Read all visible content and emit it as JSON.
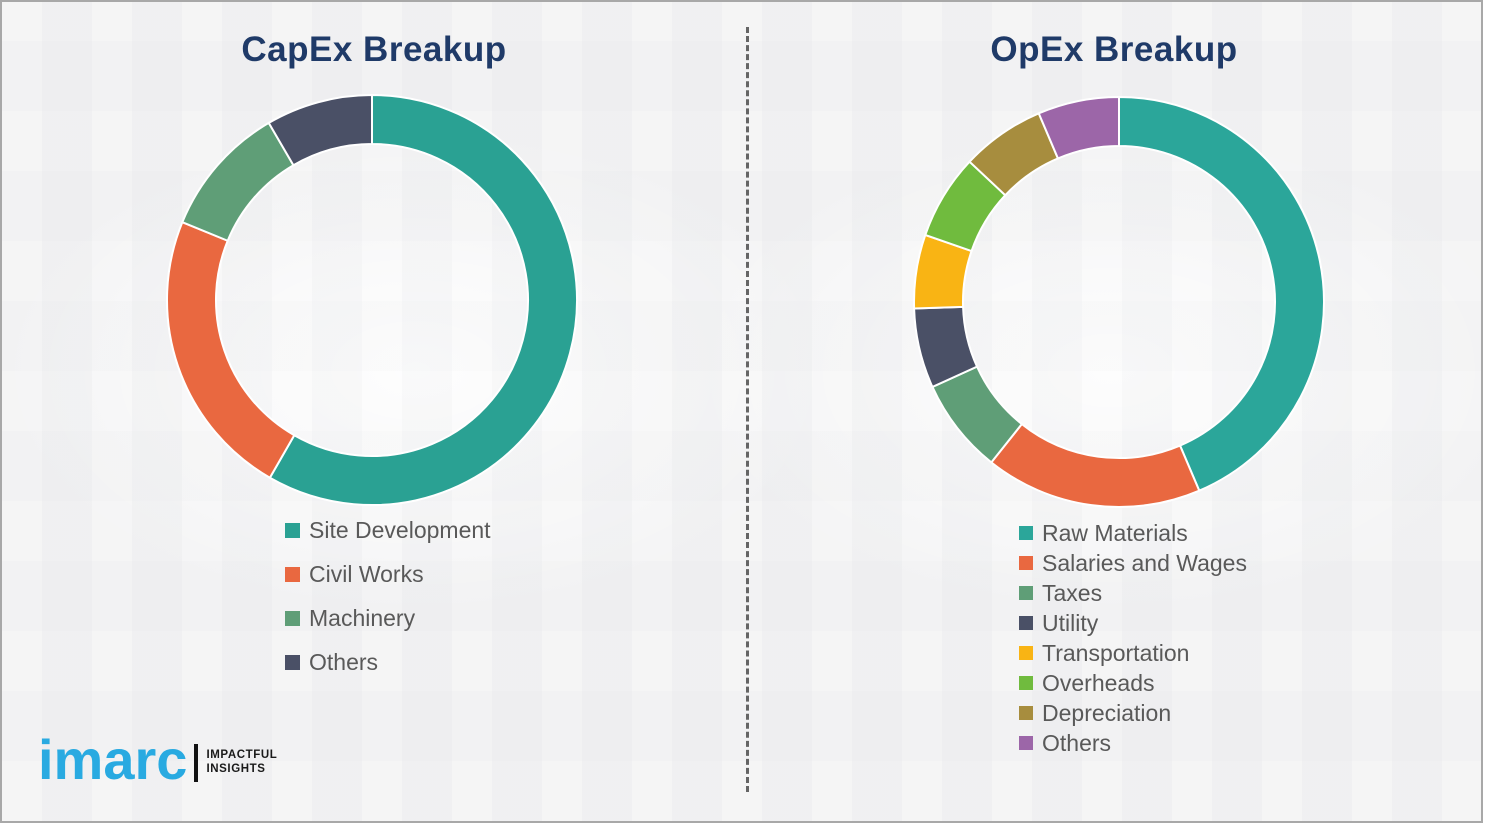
{
  "page": {
    "background_color": "#f1f1f2",
    "frame_border_color": "#a8a8a8",
    "divider_color": "#4d4d4d",
    "title_color": "#1f3a68",
    "legend_text_color": "#595959"
  },
  "chart_data": [
    {
      "type": "pie",
      "subtype": "donut",
      "title": "CapEx Breakup",
      "categories": [
        "Site Development",
        "Civil Works",
        "Machinery",
        "Others"
      ],
      "values": [
        58.3,
        22.9,
        10.4,
        8.4
      ],
      "colors": [
        "#2aa193",
        "#e96840",
        "#5f9e77",
        "#4a5066"
      ],
      "start_angle_deg": 0,
      "direction": "clockwise",
      "legend_position": "below-left",
      "data_labels": false
    },
    {
      "type": "pie",
      "subtype": "donut",
      "title": "OpEx Breakup",
      "categories": [
        "Raw Materials",
        "Salaries and Wages",
        "Taxes",
        "Utility",
        "Transportation",
        "Overheads",
        "Depreciation",
        "Others"
      ],
      "values": [
        43.6,
        17.1,
        7.5,
        6.3,
        5.8,
        6.7,
        6.6,
        6.4
      ],
      "colors": [
        "#2ba69a",
        "#e96840",
        "#5f9e77",
        "#4a5066",
        "#f9b414",
        "#70bb3e",
        "#a78d3e",
        "#9c66a8"
      ],
      "start_angle_deg": 0,
      "direction": "clockwise",
      "legend_position": "below-left",
      "data_labels": false
    }
  ],
  "logo": {
    "brand": "imarc",
    "tagline_line1": "IMPACTFUL",
    "tagline_line2": "INSIGHTS",
    "brand_color": "#29aae1"
  }
}
